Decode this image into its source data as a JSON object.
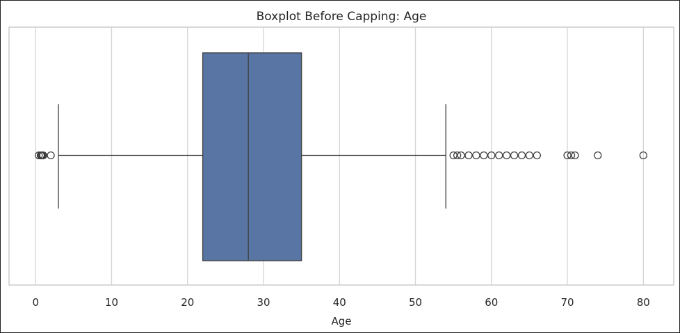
{
  "chart_data": {
    "type": "box",
    "title": "Boxplot Before Capping: Age",
    "xlabel": "Age",
    "ylabel": "",
    "xlim": [
      -3.5,
      84.0
    ],
    "xticks": [
      0,
      10,
      20,
      30,
      40,
      50,
      60,
      70,
      80
    ],
    "xtick_labels": [
      "0",
      "10",
      "20",
      "30",
      "40",
      "50",
      "60",
      "70",
      "80"
    ],
    "grid": "vertical",
    "box": {
      "whisker_low": 3.0,
      "q1": 22.0,
      "median": 28.0,
      "q3": 35.0,
      "whisker_high": 54.0
    },
    "outliers": [
      0.42,
      0.67,
      0.75,
      0.83,
      0.92,
      1.0,
      2.0,
      55.0,
      55.5,
      56.0,
      57.0,
      58.0,
      59.0,
      60.0,
      61.0,
      62.0,
      63.0,
      64.0,
      65.0,
      66.0,
      70.0,
      70.5,
      71.0,
      74.0,
      80.0
    ],
    "colors": {
      "box_fill": "#5875a4",
      "line": "#3d3d3d",
      "grid": "#d5d5d5",
      "spine": "#cccccc"
    }
  }
}
